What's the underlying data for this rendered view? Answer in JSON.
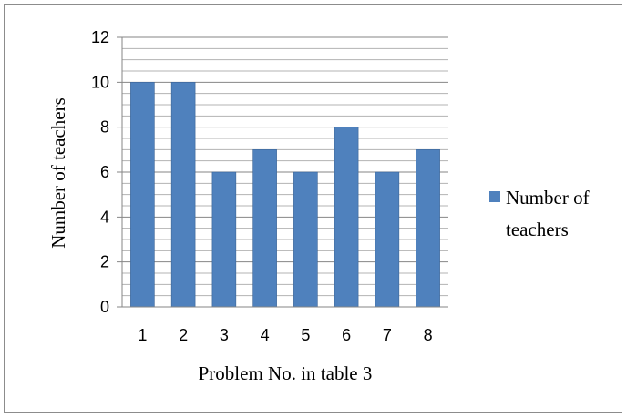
{
  "chart_data": {
    "type": "bar",
    "title": "",
    "categories": [
      "1",
      "2",
      "3",
      "4",
      "5",
      "6",
      "7",
      "8"
    ],
    "series": [
      {
        "name": "Number of teachers",
        "values": [
          10,
          10,
          6,
          7,
          6,
          8,
          6,
          7
        ]
      }
    ],
    "xlabel": "Problem No. in table 3",
    "ylabel": "Number of teachers",
    "ylim": [
      0,
      12
    ],
    "yticks": [
      "0",
      "2",
      "4",
      "6",
      "8",
      "10",
      "12"
    ],
    "major_step": 2,
    "minor_step": 0.5,
    "grid": true,
    "legend": {
      "position": "right",
      "lines": [
        "Number of",
        "teachers"
      ]
    },
    "colors": {
      "bar_fill": "#4f81bd",
      "bar_stroke": "#3a6496",
      "major_grid": "#868686",
      "minor_grid": "#b3b3b3",
      "frame": "#8c8c8c"
    }
  }
}
